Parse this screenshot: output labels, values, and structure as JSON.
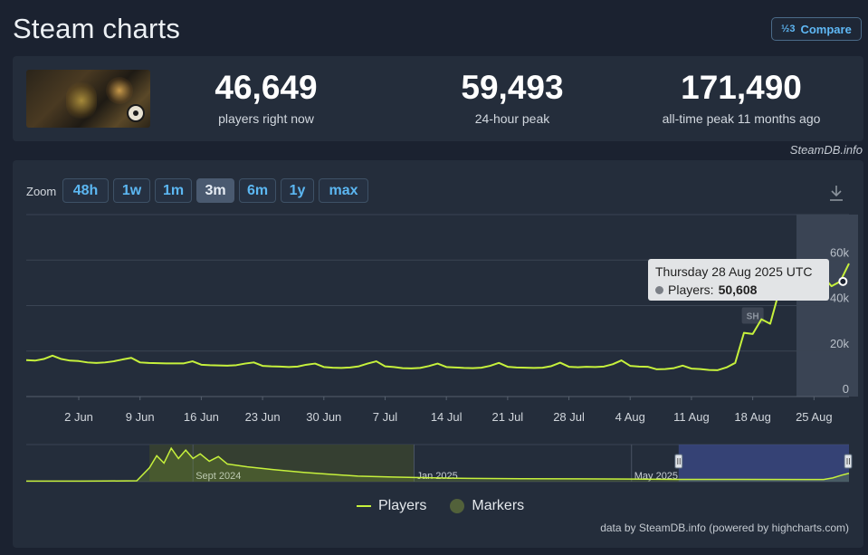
{
  "header": {
    "title": "Steam charts",
    "compare_label": "Compare",
    "compare_icon_glyph": "½3"
  },
  "stats": {
    "current": {
      "value": "46,649",
      "label": "players right now"
    },
    "peak24h": {
      "value": "59,493",
      "label": "24-hour peak"
    },
    "alltime": {
      "value": "171,490",
      "label": "all-time peak 11 months ago"
    }
  },
  "watermark": "SteamDB.info",
  "zoom": {
    "label": "Zoom",
    "buttons": [
      "48h",
      "1w",
      "1m",
      "3m",
      "6m",
      "1y",
      "max"
    ],
    "active": "3m"
  },
  "tooltip": {
    "date": "Thursday 28 Aug 2025 UTC",
    "series": "Players:",
    "value": "50,608"
  },
  "legend": {
    "players": "Players",
    "markers": "Markers"
  },
  "credits": "data by SteamDB.info (powered by highcharts.com)",
  "colors": {
    "line": "#c6f13c",
    "accent": "#5cb7f2",
    "navigator_selection": "#3b4a8a",
    "marker": "#52613a"
  },
  "chart_data": [
    {
      "type": "line",
      "series": [
        {
          "name": "Players",
          "values": [
            {
              "x": "2025-05-27",
              "y": 16000
            },
            {
              "x": "2025-05-28",
              "y": 15800
            },
            {
              "x": "2025-05-29",
              "y": 16500
            },
            {
              "x": "2025-05-30",
              "y": 18000
            },
            {
              "x": "2025-05-31",
              "y": 16500
            },
            {
              "x": "2025-06-01",
              "y": 15800
            },
            {
              "x": "2025-06-02",
              "y": 15600
            },
            {
              "x": "2025-06-03",
              "y": 15000
            },
            {
              "x": "2025-06-04",
              "y": 14800
            },
            {
              "x": "2025-06-05",
              "y": 15000
            },
            {
              "x": "2025-06-06",
              "y": 15500
            },
            {
              "x": "2025-06-07",
              "y": 16300
            },
            {
              "x": "2025-06-08",
              "y": 17000
            },
            {
              "x": "2025-06-09",
              "y": 15000
            },
            {
              "x": "2025-06-10",
              "y": 14800
            },
            {
              "x": "2025-06-11",
              "y": 14700
            },
            {
              "x": "2025-06-12",
              "y": 14600
            },
            {
              "x": "2025-06-13",
              "y": 14600
            },
            {
              "x": "2025-06-14",
              "y": 14600
            },
            {
              "x": "2025-06-15",
              "y": 15500
            },
            {
              "x": "2025-06-16",
              "y": 14000
            },
            {
              "x": "2025-06-17",
              "y": 13800
            },
            {
              "x": "2025-06-18",
              "y": 13700
            },
            {
              "x": "2025-06-19",
              "y": 13600
            },
            {
              "x": "2025-06-20",
              "y": 13800
            },
            {
              "x": "2025-06-21",
              "y": 14500
            },
            {
              "x": "2025-06-22",
              "y": 15000
            },
            {
              "x": "2025-06-23",
              "y": 13500
            },
            {
              "x": "2025-06-24",
              "y": 13300
            },
            {
              "x": "2025-06-25",
              "y": 13200
            },
            {
              "x": "2025-06-26",
              "y": 13000
            },
            {
              "x": "2025-06-27",
              "y": 13200
            },
            {
              "x": "2025-06-28",
              "y": 14000
            },
            {
              "x": "2025-06-29",
              "y": 14500
            },
            {
              "x": "2025-06-30",
              "y": 13000
            },
            {
              "x": "2025-07-01",
              "y": 12700
            },
            {
              "x": "2025-07-02",
              "y": 12600
            },
            {
              "x": "2025-07-03",
              "y": 12800
            },
            {
              "x": "2025-07-04",
              "y": 13300
            },
            {
              "x": "2025-07-05",
              "y": 14500
            },
            {
              "x": "2025-07-06",
              "y": 15500
            },
            {
              "x": "2025-07-07",
              "y": 13300
            },
            {
              "x": "2025-07-08",
              "y": 13000
            },
            {
              "x": "2025-07-09",
              "y": 12500
            },
            {
              "x": "2025-07-10",
              "y": 12400
            },
            {
              "x": "2025-07-11",
              "y": 12600
            },
            {
              "x": "2025-07-12",
              "y": 13400
            },
            {
              "x": "2025-07-13",
              "y": 14500
            },
            {
              "x": "2025-07-14",
              "y": 13000
            },
            {
              "x": "2025-07-15",
              "y": 12800
            },
            {
              "x": "2025-07-16",
              "y": 12600
            },
            {
              "x": "2025-07-17",
              "y": 12500
            },
            {
              "x": "2025-07-18",
              "y": 12700
            },
            {
              "x": "2025-07-19",
              "y": 13500
            },
            {
              "x": "2025-07-20",
              "y": 14800
            },
            {
              "x": "2025-07-21",
              "y": 13100
            },
            {
              "x": "2025-07-22",
              "y": 12800
            },
            {
              "x": "2025-07-23",
              "y": 12700
            },
            {
              "x": "2025-07-24",
              "y": 12600
            },
            {
              "x": "2025-07-25",
              "y": 12700
            },
            {
              "x": "2025-07-26",
              "y": 13400
            },
            {
              "x": "2025-07-27",
              "y": 14900
            },
            {
              "x": "2025-07-28",
              "y": 13100
            },
            {
              "x": "2025-07-29",
              "y": 12900
            },
            {
              "x": "2025-07-30",
              "y": 13100
            },
            {
              "x": "2025-07-31",
              "y": 13000
            },
            {
              "x": "2025-08-01",
              "y": 13200
            },
            {
              "x": "2025-08-02",
              "y": 14200
            },
            {
              "x": "2025-08-03",
              "y": 15900
            },
            {
              "x": "2025-08-04",
              "y": 13500
            },
            {
              "x": "2025-08-05",
              "y": 13200
            },
            {
              "x": "2025-08-06",
              "y": 13100
            },
            {
              "x": "2025-08-07",
              "y": 12000
            },
            {
              "x": "2025-08-08",
              "y": 12100
            },
            {
              "x": "2025-08-09",
              "y": 12500
            },
            {
              "x": "2025-08-10",
              "y": 13600
            },
            {
              "x": "2025-08-11",
              "y": 12300
            },
            {
              "x": "2025-08-12",
              "y": 12100
            },
            {
              "x": "2025-08-13",
              "y": 11700
            },
            {
              "x": "2025-08-14",
              "y": 11600
            },
            {
              "x": "2025-08-15",
              "y": 12800
            },
            {
              "x": "2025-08-16",
              "y": 14800
            },
            {
              "x": "2025-08-17",
              "y": 28000
            },
            {
              "x": "2025-08-18",
              "y": 27500
            },
            {
              "x": "2025-08-19",
              "y": 34000
            },
            {
              "x": "2025-08-20",
              "y": 32000
            },
            {
              "x": "2025-08-21",
              "y": 46000
            },
            {
              "x": "2025-08-22",
              "y": 47000
            },
            {
              "x": "2025-08-23",
              "y": 46000
            },
            {
              "x": "2025-08-24",
              "y": 51000
            },
            {
              "x": "2025-08-25",
              "y": 55000
            },
            {
              "x": "2025-08-26",
              "y": 53000
            },
            {
              "x": "2025-08-27",
              "y": 48500
            },
            {
              "x": "2025-08-28",
              "y": 50608
            },
            {
              "x": "2025-08-29",
              "y": 58500
            }
          ]
        }
      ],
      "x_ticks": [
        "2 Jun",
        "9 Jun",
        "16 Jun",
        "23 Jun",
        "30 Jun",
        "7 Jul",
        "14 Jul",
        "21 Jul",
        "28 Jul",
        "4 Aug",
        "11 Aug",
        "18 Aug",
        "25 Aug"
      ],
      "x_tick_dates": [
        "2025-06-02",
        "2025-06-09",
        "2025-06-16",
        "2025-06-23",
        "2025-06-30",
        "2025-07-07",
        "2025-07-14",
        "2025-07-21",
        "2025-07-28",
        "2025-08-04",
        "2025-08-11",
        "2025-08-18",
        "2025-08-25"
      ],
      "y_ticks": [
        "0",
        "20k",
        "40k",
        "60k"
      ],
      "y_tick_values": [
        0,
        20000,
        40000,
        60000
      ],
      "xlim": [
        "2025-05-27",
        "2025-08-29"
      ],
      "ylim": [
        0,
        80000
      ],
      "grid": true,
      "highlight_band": {
        "from": "2025-08-23",
        "to": "2025-08-29"
      },
      "markers": [
        {
          "label": "SH",
          "x": "2025-08-18"
        }
      ],
      "tooltip_point": {
        "x": "2025-08-28",
        "y": 50608
      }
    },
    {
      "type": "area",
      "role": "navigator",
      "series": [
        {
          "name": "Players",
          "values": [
            {
              "x": "2024-06-01",
              "y": 600
            },
            {
              "x": "2024-07-01",
              "y": 600
            },
            {
              "x": "2024-07-15",
              "y": 700
            },
            {
              "x": "2024-08-01",
              "y": 1000
            },
            {
              "x": "2024-08-08",
              "y": 15000
            },
            {
              "x": "2024-08-12",
              "y": 28000
            },
            {
              "x": "2024-08-16",
              "y": 20000
            },
            {
              "x": "2024-08-20",
              "y": 36000
            },
            {
              "x": "2024-08-24",
              "y": 25000
            },
            {
              "x": "2024-08-28",
              "y": 34000
            },
            {
              "x": "2024-09-01",
              "y": 25000
            },
            {
              "x": "2024-09-05",
              "y": 30000
            },
            {
              "x": "2024-09-10",
              "y": 22000
            },
            {
              "x": "2024-09-15",
              "y": 27000
            },
            {
              "x": "2024-09-20",
              "y": 19000
            },
            {
              "x": "2024-10-01",
              "y": 16000
            },
            {
              "x": "2024-10-15",
              "y": 13000
            },
            {
              "x": "2024-11-01",
              "y": 10000
            },
            {
              "x": "2024-11-15",
              "y": 8000
            },
            {
              "x": "2024-12-01",
              "y": 6000
            },
            {
              "x": "2024-12-20",
              "y": 5000
            },
            {
              "x": "2025-01-01",
              "y": 4500
            },
            {
              "x": "2025-01-15",
              "y": 4000
            },
            {
              "x": "2025-02-01",
              "y": 3500
            },
            {
              "x": "2025-03-01",
              "y": 3200
            },
            {
              "x": "2025-04-01",
              "y": 3000
            },
            {
              "x": "2025-05-01",
              "y": 2800
            },
            {
              "x": "2025-05-27",
              "y": 2500
            },
            {
              "x": "2025-07-01",
              "y": 2400
            },
            {
              "x": "2025-08-15",
              "y": 2300
            },
            {
              "x": "2025-08-20",
              "y": 4000
            },
            {
              "x": "2025-08-25",
              "y": 7000
            },
            {
              "x": "2025-08-29",
              "y": 9000
            }
          ]
        }
      ],
      "x_ticks": [
        "Sept 2024",
        "Jan 2025",
        "May 2025"
      ],
      "x_tick_dates": [
        "2024-09-01",
        "2025-01-01",
        "2025-05-01"
      ],
      "xlim": [
        "2024-06-01",
        "2025-08-29"
      ],
      "ylim": [
        0,
        40000
      ],
      "selection": {
        "from": "2025-05-27",
        "to": "2025-08-29"
      },
      "shaded_band": {
        "from": "2024-08-08",
        "to": "2025-01-01"
      }
    }
  ]
}
